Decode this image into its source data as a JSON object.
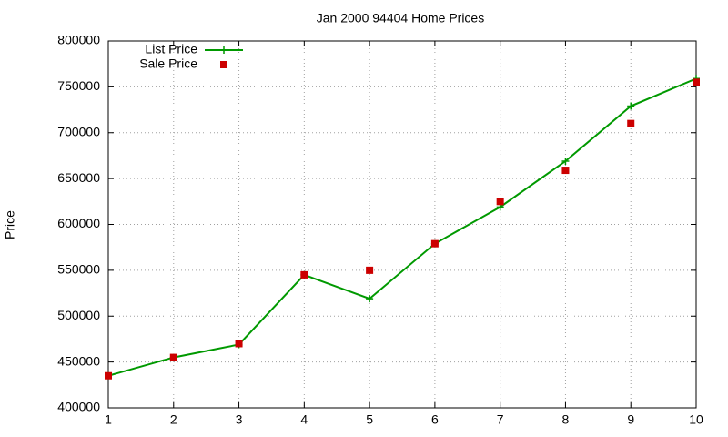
{
  "chart_data": {
    "type": "line",
    "title": "Jan 2000 94404 Home Prices",
    "y_label": "Price",
    "x": [
      1,
      2,
      3,
      4,
      5,
      6,
      7,
      8,
      9,
      10
    ],
    "series": [
      {
        "name": "List Price",
        "color": "#009900",
        "style": "linespoints",
        "marker": "plus",
        "values": [
          435000,
          455000,
          469000,
          545000,
          519000,
          579000,
          619000,
          669000,
          729000,
          759000
        ]
      },
      {
        "name": "Sale Price",
        "color": "#cc0000",
        "style": "points",
        "marker": "square",
        "values": [
          435000,
          455000,
          470000,
          545000,
          550000,
          579000,
          625000,
          659000,
          710000,
          755000
        ]
      }
    ],
    "xlim": [
      1,
      10
    ],
    "xticks": [
      1,
      2,
      3,
      4,
      5,
      6,
      7,
      8,
      9,
      10
    ],
    "ylim": [
      400000,
      800000
    ],
    "yticks": [
      400000,
      450000,
      500000,
      550000,
      600000,
      650000,
      700000,
      750000,
      800000
    ],
    "grid": true,
    "legend": "upper-left"
  }
}
